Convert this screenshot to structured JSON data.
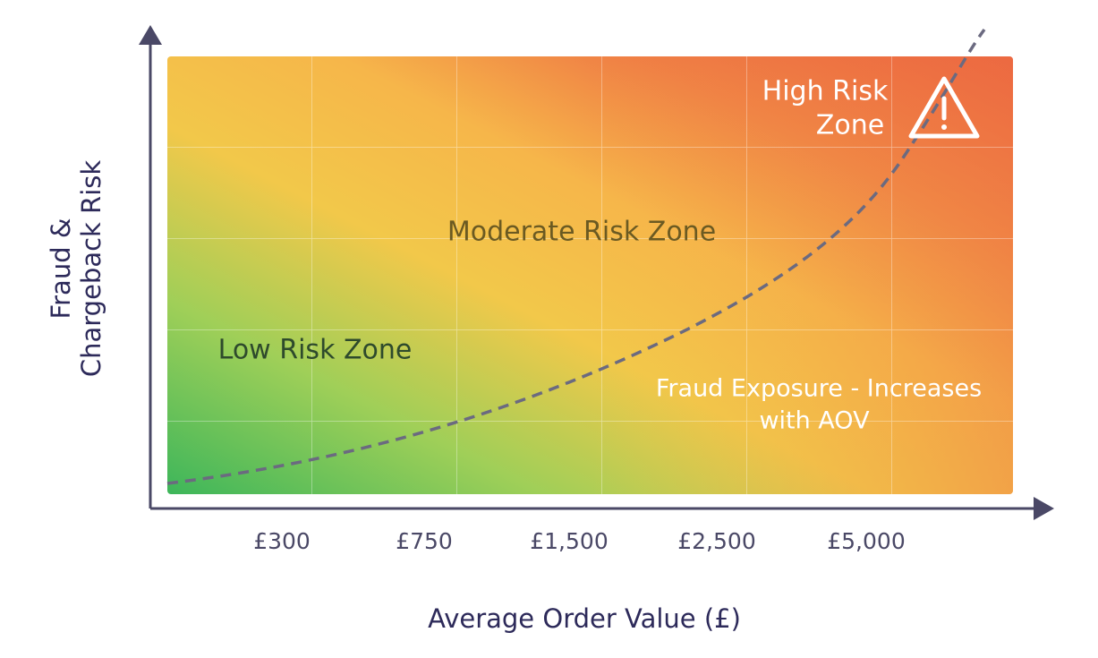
{
  "axes": {
    "y_title": [
      "Fraud &",
      "Chargeback Risk"
    ],
    "x_title": "Average Order Value (£)",
    "x_labels": [
      "£300",
      "£750",
      "£1,500",
      "£2,500",
      "£5,000"
    ]
  },
  "zones": {
    "high": [
      "High Risk",
      "Zone"
    ],
    "moderate": "Moderate Risk Zone",
    "low": "Low Risk Zone",
    "annotation": [
      "Fraud Exposure - Increases",
      "with AOV"
    ]
  }
}
